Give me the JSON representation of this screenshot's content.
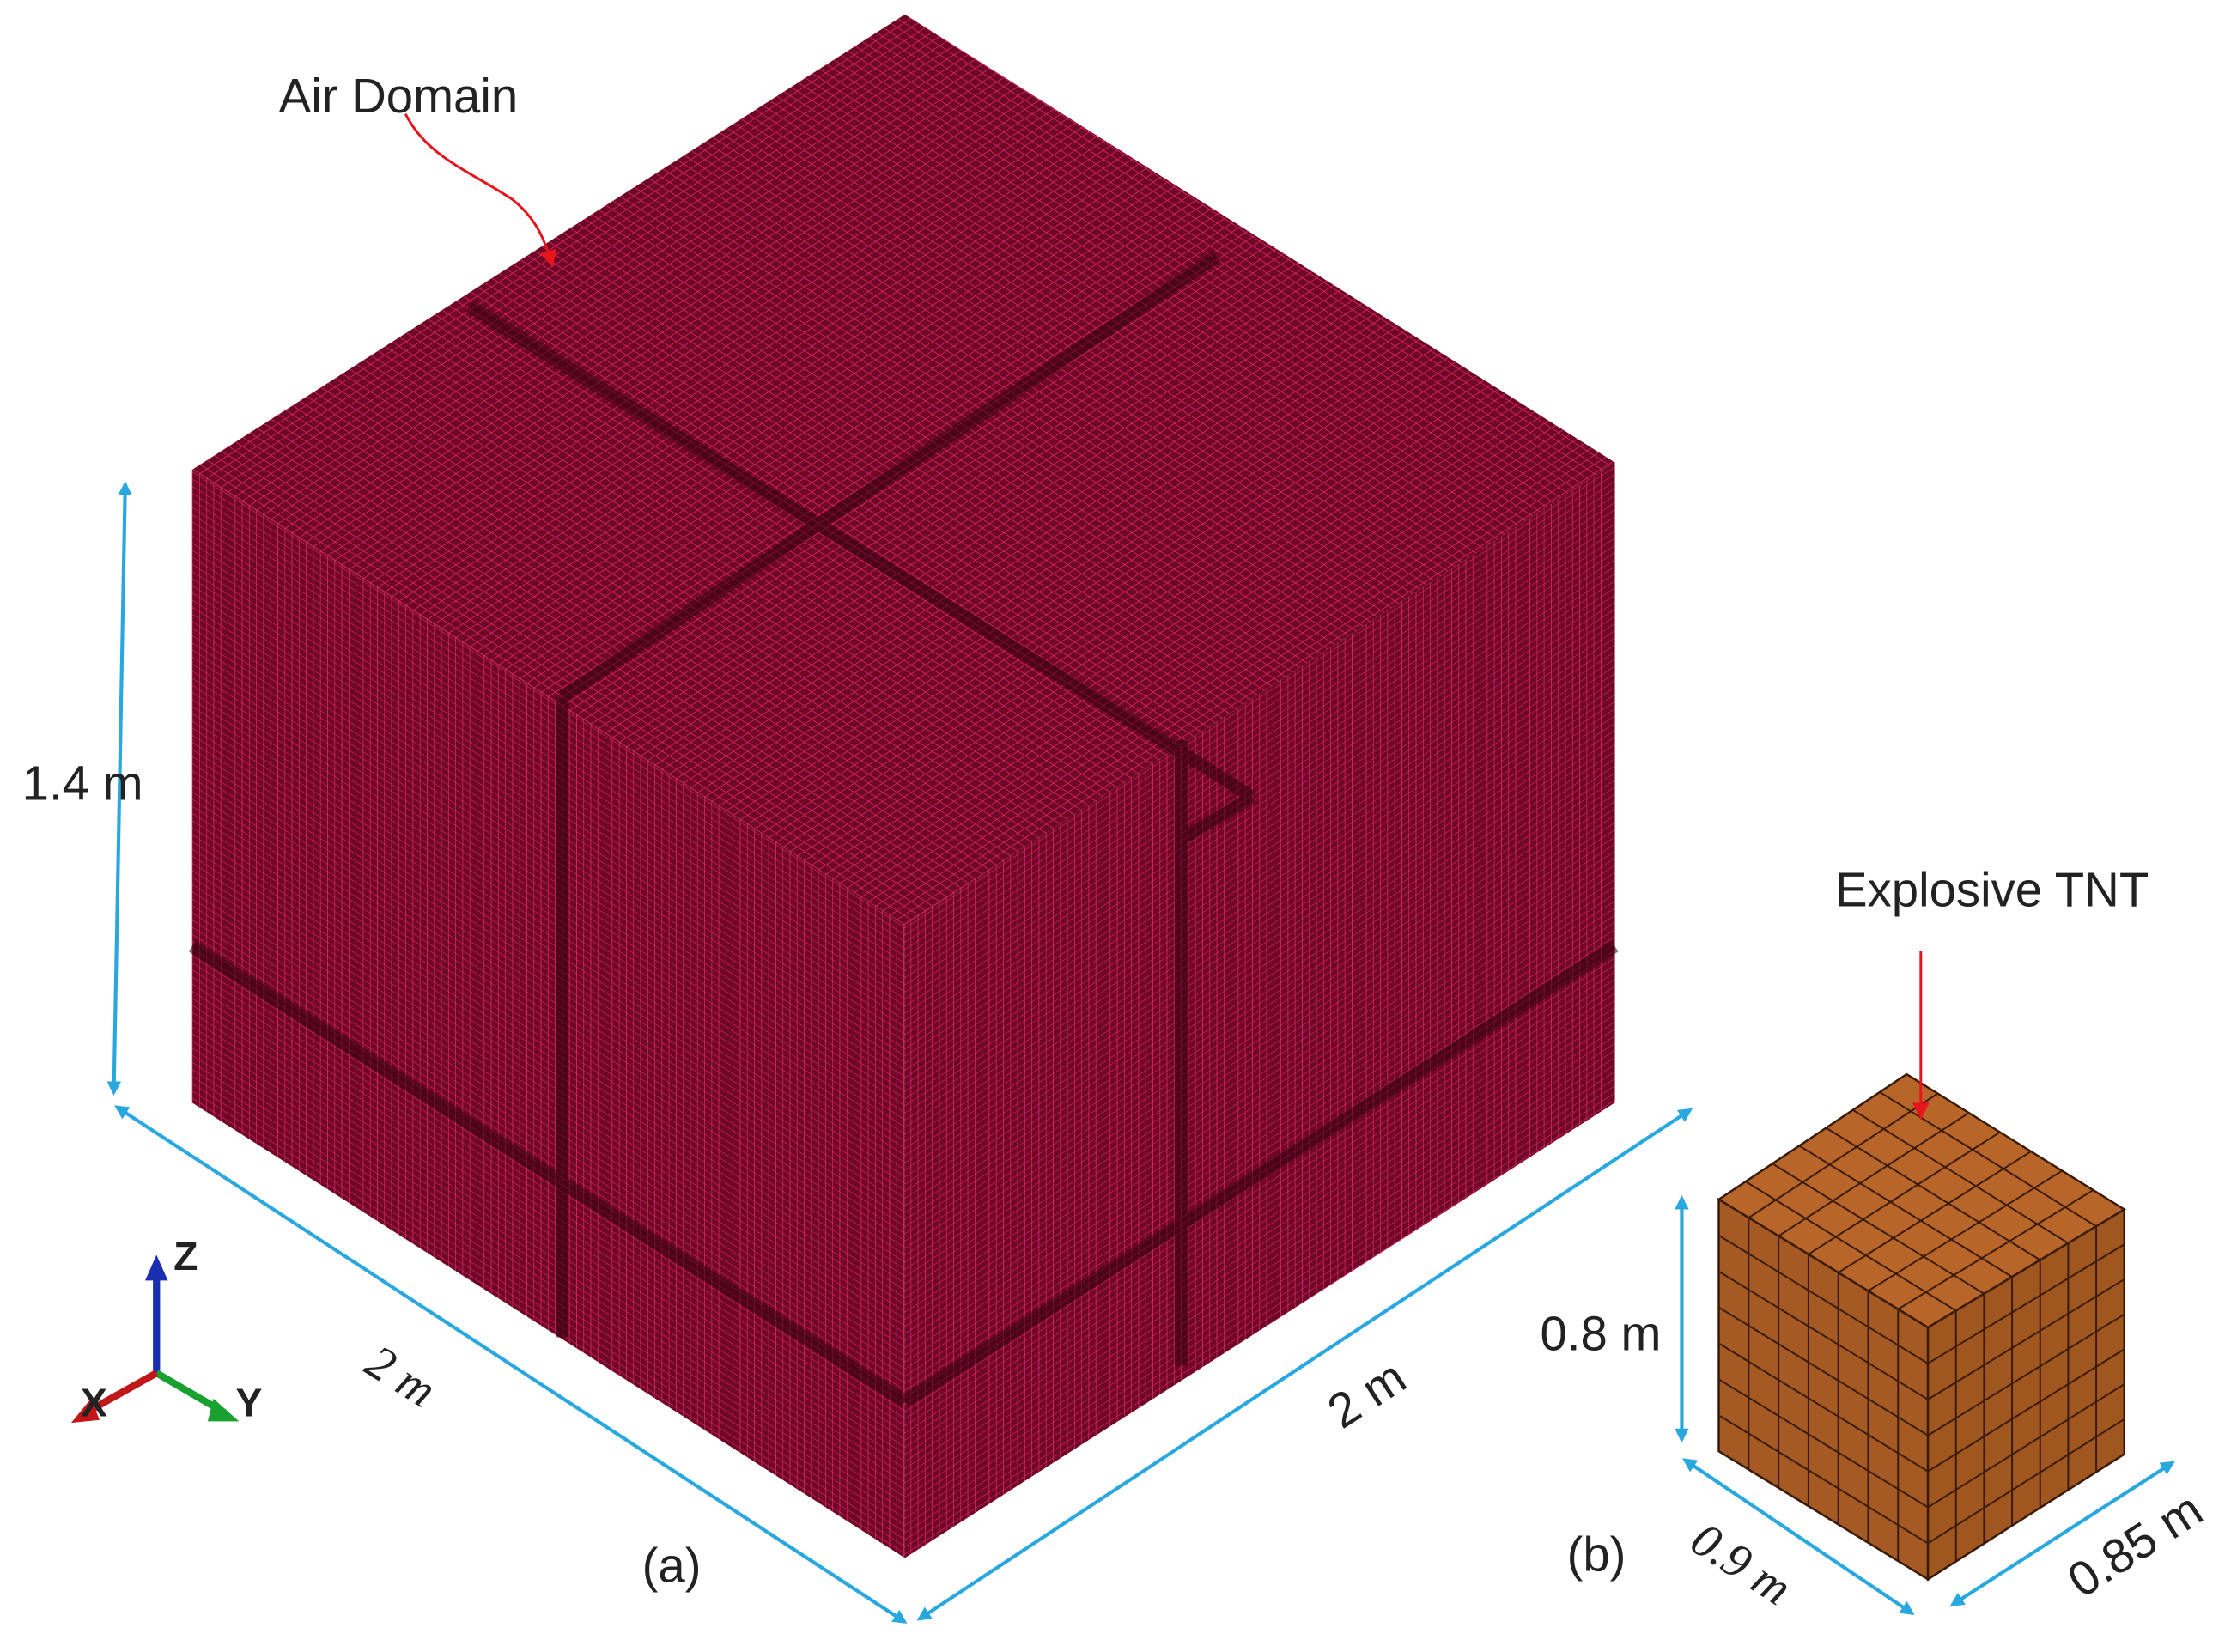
{
  "panel_a": {
    "annotation": "Air Domain",
    "height_label": "1.4 m",
    "left_width_label": "2 m",
    "right_width_label": "2 m",
    "caption": "(a)"
  },
  "panel_b": {
    "annotation": "Explosive TNT",
    "height_label": "0.8 m",
    "left_width_label": "0.9 m",
    "right_width_label": "0.85 m",
    "caption": "(b)"
  },
  "axes": {
    "z": "Z",
    "x": "X",
    "y": "Y"
  }
}
